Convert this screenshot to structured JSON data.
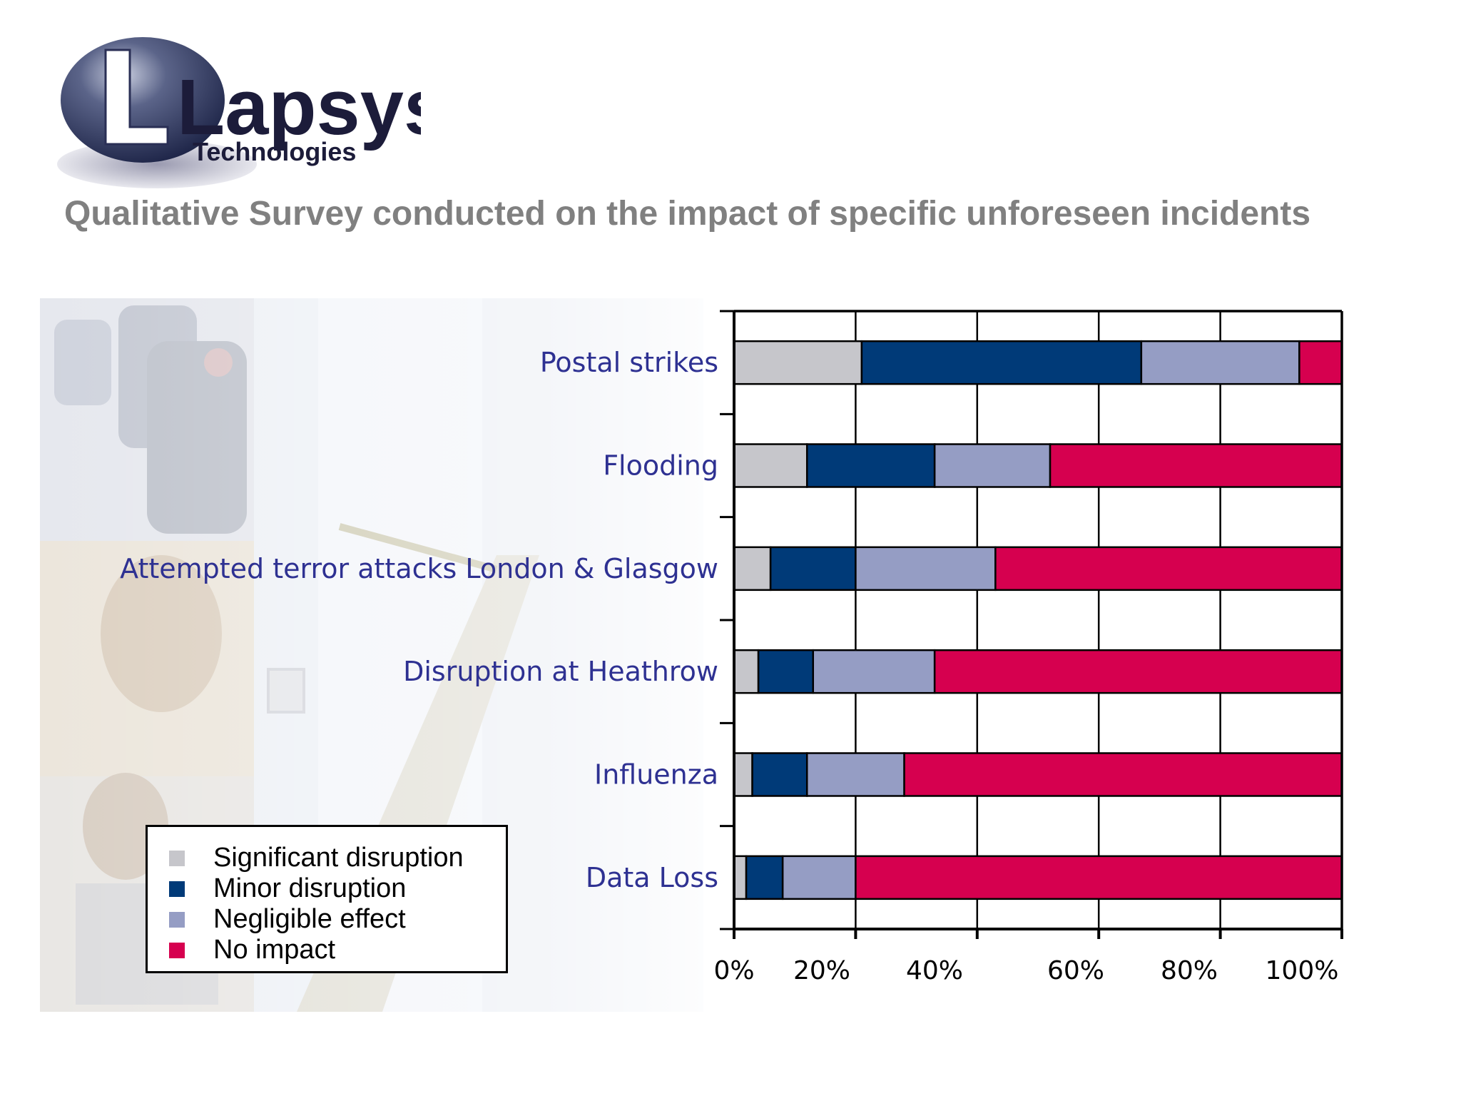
{
  "logo": {
    "name": "Lapsys",
    "tagline": "Technologies"
  },
  "slide_title": "Qualitative Survey conducted on the impact of specific unforeseen incidents",
  "colors": {
    "significant": "#c6c6cb",
    "minor": "#003a78",
    "negligible": "#959dc4",
    "none": "#d6004f",
    "label_text": "#2e3192",
    "title_text": "#808080"
  },
  "chart_data": {
    "type": "bar",
    "orientation": "horizontal",
    "stacked": "percent",
    "title": "",
    "xlabel": "",
    "ylabel": "",
    "xlim": [
      0,
      100
    ],
    "grid": true,
    "legend_position": "bottom-left",
    "categories": [
      "Postal strikes",
      "Flooding",
      "Attempted terror attacks London & Glasgow",
      "Disruption at Heathrow",
      "Influenza",
      "Data Loss"
    ],
    "x_ticks": [
      "0%",
      "20%",
      "40%",
      "60%",
      "80%",
      "100%"
    ],
    "series": [
      {
        "name": "Significant disruption",
        "color": "#c6c6cb",
        "values": [
          21,
          12,
          6,
          4,
          3,
          2
        ]
      },
      {
        "name": "Minor disruption",
        "color": "#003a78",
        "values": [
          46,
          21,
          14,
          9,
          9,
          6
        ]
      },
      {
        "name": "Negligible effect",
        "color": "#959dc4",
        "values": [
          26,
          19,
          23,
          20,
          16,
          12
        ]
      },
      {
        "name": "No impact",
        "color": "#d6004f",
        "values": [
          7,
          48,
          57,
          67,
          72,
          80
        ]
      }
    ]
  }
}
